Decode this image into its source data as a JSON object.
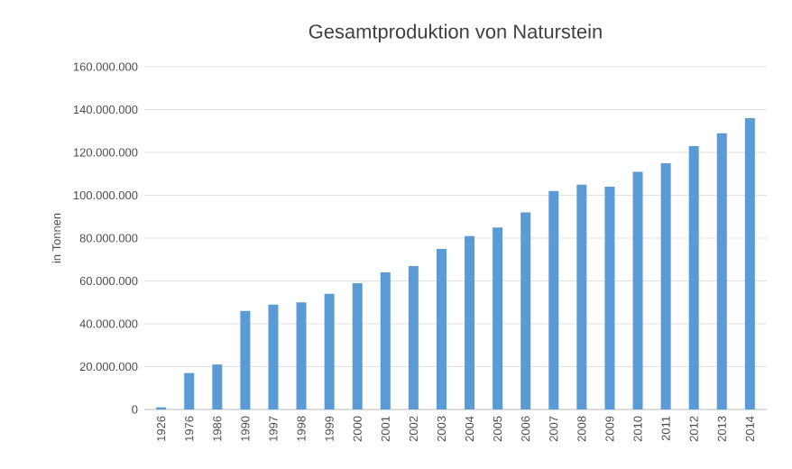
{
  "chart_data": {
    "type": "bar",
    "title": "Gesamtproduktion von Naturstein",
    "ylabel": "in Tonnen",
    "categories": [
      "1926",
      "1976",
      "1986",
      "1990",
      "1997",
      "1998",
      "1999",
      "2000",
      "2001",
      "2002",
      "2003",
      "2004",
      "2005",
      "2006",
      "2007",
      "2008",
      "2009",
      "2010",
      "2011",
      "2012",
      "2013",
      "2014"
    ],
    "values": [
      1000000,
      17000000,
      21000000,
      46000000,
      49000000,
      50000000,
      54000000,
      59000000,
      64000000,
      67000000,
      75000000,
      81000000,
      85000000,
      92000000,
      102000000,
      105000000,
      104000000,
      111000000,
      115000000,
      123000000,
      129000000,
      136000000
    ],
    "color": "#5b9bd5",
    "ylim": [
      0,
      160000000
    ],
    "yticks": [
      {
        "value": 0,
        "label": "0"
      },
      {
        "value": 20000000,
        "label": "20.000.000"
      },
      {
        "value": 40000000,
        "label": "40.000.000"
      },
      {
        "value": 60000000,
        "label": "60.000.000"
      },
      {
        "value": 80000000,
        "label": "80.000.000"
      },
      {
        "value": 100000000,
        "label": "100.000.000"
      },
      {
        "value": 120000000,
        "label": "120.000.000"
      },
      {
        "value": 140000000,
        "label": "140.000.000"
      },
      {
        "value": 160000000,
        "label": "160.000.000"
      }
    ],
    "grid": "y"
  }
}
